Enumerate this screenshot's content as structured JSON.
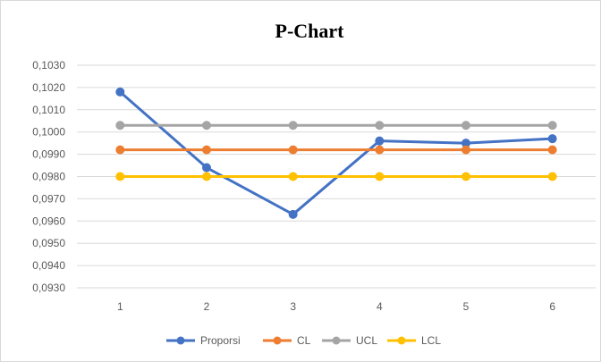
{
  "chart_data": {
    "type": "line",
    "title": "P-Chart",
    "xlabel": "",
    "ylabel": "",
    "categories": [
      "1",
      "2",
      "3",
      "4",
      "5",
      "6"
    ],
    "ylim": [
      0.093,
      0.103
    ],
    "yticks": [
      "0,0930",
      "0,0940",
      "0,0950",
      "0,0960",
      "0,0970",
      "0,0980",
      "0,0990",
      "0,1000",
      "0,1010",
      "0,1020",
      "0,1030"
    ],
    "grid": true,
    "legend": "bottom",
    "series": [
      {
        "name": "Proporsi",
        "color": "#4472c4",
        "values": [
          0.1018,
          0.0984,
          0.0963,
          0.0996,
          0.0995,
          0.0997
        ]
      },
      {
        "name": "CL",
        "color": "#ed7d31",
        "values": [
          0.0992,
          0.0992,
          0.0992,
          0.0992,
          0.0992,
          0.0992
        ]
      },
      {
        "name": "UCL",
        "color": "#a5a5a5",
        "values": [
          0.1003,
          0.1003,
          0.1003,
          0.1003,
          0.1003,
          0.1003
        ]
      },
      {
        "name": "LCL",
        "color": "#ffc000",
        "values": [
          0.098,
          0.098,
          0.098,
          0.098,
          0.098,
          0.098
        ]
      }
    ]
  }
}
